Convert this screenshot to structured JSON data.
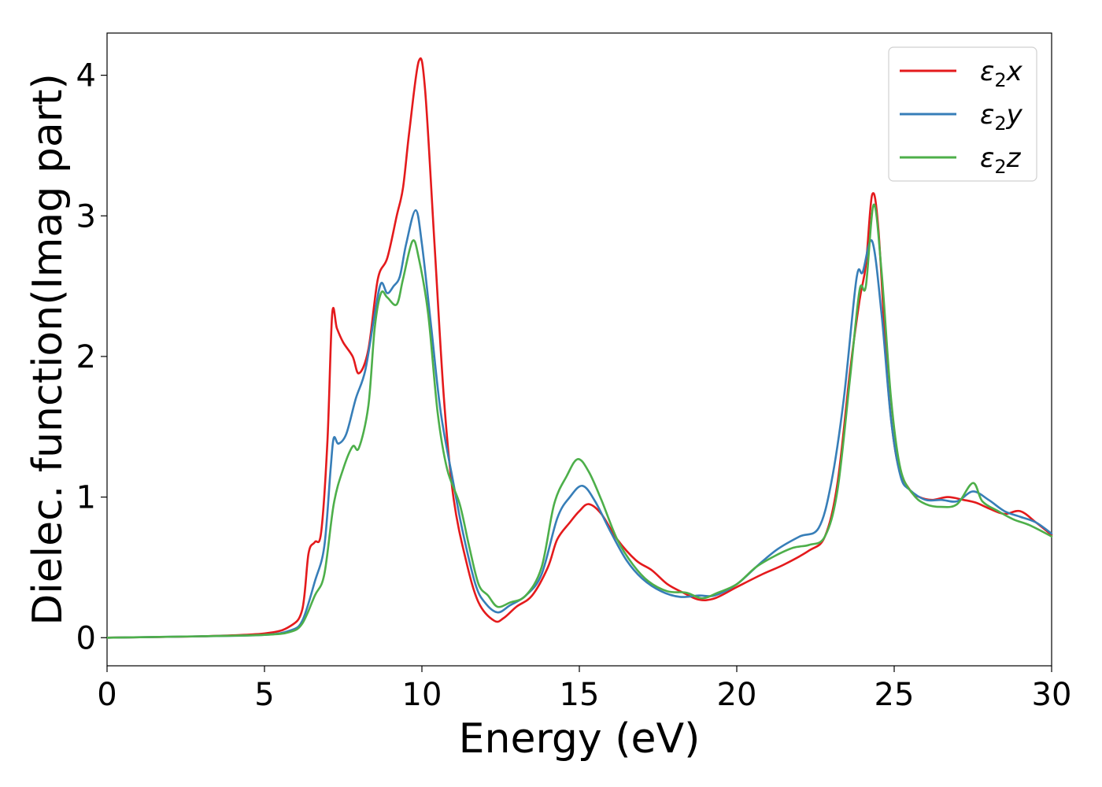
{
  "chart_data": {
    "type": "line",
    "title": "",
    "xlabel": "Energy (eV)",
    "ylabel": "Dielec. function(Imag part)",
    "xlim": [
      0,
      30
    ],
    "ylim": [
      -0.2,
      4.3
    ],
    "xticks": [
      0,
      5,
      10,
      15,
      20,
      25,
      30
    ],
    "yticks": [
      0,
      1,
      2,
      3,
      4
    ],
    "grid": false,
    "legend": {
      "placement": "top-right",
      "entries": [
        {
          "prefix": "ε",
          "sub": "2",
          "suffix": "x"
        },
        {
          "prefix": "ε",
          "sub": "2",
          "suffix": "y"
        },
        {
          "prefix": "ε",
          "sub": "2",
          "suffix": "z"
        }
      ]
    },
    "series": [
      {
        "name": "ε2x",
        "color": "#e41a1c",
        "points": [
          [
            0,
            0.0
          ],
          [
            3,
            0.01
          ],
          [
            5,
            0.03
          ],
          [
            5.8,
            0.08
          ],
          [
            6.2,
            0.2
          ],
          [
            6.4,
            0.6
          ],
          [
            6.6,
            0.68
          ],
          [
            6.8,
            0.75
          ],
          [
            7.0,
            1.4
          ],
          [
            7.15,
            2.3
          ],
          [
            7.3,
            2.2
          ],
          [
            7.5,
            2.1
          ],
          [
            7.8,
            2.0
          ],
          [
            8.0,
            1.88
          ],
          [
            8.3,
            2.05
          ],
          [
            8.6,
            2.55
          ],
          [
            8.9,
            2.7
          ],
          [
            9.2,
            3.0
          ],
          [
            9.4,
            3.2
          ],
          [
            9.6,
            3.6
          ],
          [
            9.9,
            4.1
          ],
          [
            10.1,
            3.9
          ],
          [
            10.4,
            2.8
          ],
          [
            10.7,
            1.7
          ],
          [
            11.0,
            1.0
          ],
          [
            11.4,
            0.55
          ],
          [
            11.8,
            0.25
          ],
          [
            12.3,
            0.12
          ],
          [
            12.6,
            0.14
          ],
          [
            13.0,
            0.22
          ],
          [
            13.5,
            0.3
          ],
          [
            14.0,
            0.5
          ],
          [
            14.3,
            0.7
          ],
          [
            14.7,
            0.82
          ],
          [
            15.0,
            0.9
          ],
          [
            15.3,
            0.95
          ],
          [
            15.7,
            0.88
          ],
          [
            16.2,
            0.7
          ],
          [
            16.8,
            0.55
          ],
          [
            17.3,
            0.48
          ],
          [
            17.8,
            0.38
          ],
          [
            18.3,
            0.32
          ],
          [
            18.8,
            0.27
          ],
          [
            19.3,
            0.28
          ],
          [
            20.0,
            0.36
          ],
          [
            20.8,
            0.45
          ],
          [
            21.5,
            0.52
          ],
          [
            22.3,
            0.62
          ],
          [
            22.8,
            0.72
          ],
          [
            23.2,
            1.1
          ],
          [
            23.6,
            1.9
          ],
          [
            23.9,
            2.4
          ],
          [
            24.1,
            2.65
          ],
          [
            24.3,
            3.15
          ],
          [
            24.5,
            2.9
          ],
          [
            24.8,
            1.8
          ],
          [
            25.1,
            1.25
          ],
          [
            25.5,
            1.05
          ],
          [
            25.8,
            1.0
          ],
          [
            26.2,
            0.98
          ],
          [
            26.7,
            1.0
          ],
          [
            27.2,
            0.98
          ],
          [
            27.6,
            0.96
          ],
          [
            28.0,
            0.92
          ],
          [
            28.5,
            0.88
          ],
          [
            29.0,
            0.9
          ],
          [
            29.5,
            0.82
          ],
          [
            30.0,
            0.73
          ]
        ]
      },
      {
        "name": "ε2y",
        "color": "#377eb8",
        "points": [
          [
            0,
            0.0
          ],
          [
            3,
            0.01
          ],
          [
            5,
            0.02
          ],
          [
            5.8,
            0.05
          ],
          [
            6.2,
            0.12
          ],
          [
            6.6,
            0.4
          ],
          [
            6.9,
            0.65
          ],
          [
            7.1,
            1.2
          ],
          [
            7.2,
            1.42
          ],
          [
            7.35,
            1.38
          ],
          [
            7.6,
            1.45
          ],
          [
            7.9,
            1.7
          ],
          [
            8.2,
            1.9
          ],
          [
            8.5,
            2.3
          ],
          [
            8.7,
            2.52
          ],
          [
            8.9,
            2.45
          ],
          [
            9.1,
            2.5
          ],
          [
            9.3,
            2.57
          ],
          [
            9.5,
            2.8
          ],
          [
            9.8,
            3.04
          ],
          [
            10.0,
            2.8
          ],
          [
            10.3,
            2.2
          ],
          [
            10.6,
            1.6
          ],
          [
            11.0,
            1.1
          ],
          [
            11.3,
            0.75
          ],
          [
            11.7,
            0.38
          ],
          [
            12.0,
            0.25
          ],
          [
            12.4,
            0.18
          ],
          [
            12.8,
            0.23
          ],
          [
            13.3,
            0.3
          ],
          [
            13.8,
            0.45
          ],
          [
            14.3,
            0.85
          ],
          [
            14.7,
            1.0
          ],
          [
            15.1,
            1.08
          ],
          [
            15.5,
            0.97
          ],
          [
            16.0,
            0.75
          ],
          [
            16.5,
            0.55
          ],
          [
            17.0,
            0.42
          ],
          [
            17.6,
            0.33
          ],
          [
            18.2,
            0.29
          ],
          [
            18.8,
            0.3
          ],
          [
            19.3,
            0.3
          ],
          [
            20.0,
            0.38
          ],
          [
            20.7,
            0.52
          ],
          [
            21.3,
            0.63
          ],
          [
            22.0,
            0.72
          ],
          [
            22.6,
            0.78
          ],
          [
            23.0,
            1.1
          ],
          [
            23.4,
            1.7
          ],
          [
            23.8,
            2.55
          ],
          [
            24.0,
            2.6
          ],
          [
            24.3,
            2.82
          ],
          [
            24.6,
            2.3
          ],
          [
            24.9,
            1.55
          ],
          [
            25.2,
            1.15
          ],
          [
            25.5,
            1.05
          ],
          [
            26.0,
            0.98
          ],
          [
            26.5,
            0.98
          ],
          [
            27.0,
            0.97
          ],
          [
            27.5,
            1.04
          ],
          [
            28.0,
            0.98
          ],
          [
            28.5,
            0.9
          ],
          [
            29.0,
            0.86
          ],
          [
            29.5,
            0.82
          ],
          [
            30.0,
            0.74
          ]
        ]
      },
      {
        "name": "ε2z",
        "color": "#4daf4a",
        "points": [
          [
            0,
            0.0
          ],
          [
            3,
            0.01
          ],
          [
            5,
            0.02
          ],
          [
            5.8,
            0.04
          ],
          [
            6.2,
            0.1
          ],
          [
            6.6,
            0.3
          ],
          [
            6.9,
            0.45
          ],
          [
            7.2,
            0.95
          ],
          [
            7.5,
            1.2
          ],
          [
            7.8,
            1.36
          ],
          [
            8.0,
            1.35
          ],
          [
            8.3,
            1.65
          ],
          [
            8.5,
            2.2
          ],
          [
            8.7,
            2.45
          ],
          [
            8.9,
            2.42
          ],
          [
            9.2,
            2.37
          ],
          [
            9.4,
            2.55
          ],
          [
            9.7,
            2.82
          ],
          [
            9.9,
            2.7
          ],
          [
            10.2,
            2.3
          ],
          [
            10.5,
            1.6
          ],
          [
            10.8,
            1.2
          ],
          [
            11.2,
            0.95
          ],
          [
            11.5,
            0.65
          ],
          [
            11.8,
            0.38
          ],
          [
            12.1,
            0.3
          ],
          [
            12.4,
            0.22
          ],
          [
            12.8,
            0.25
          ],
          [
            13.3,
            0.3
          ],
          [
            13.8,
            0.5
          ],
          [
            14.2,
            0.95
          ],
          [
            14.6,
            1.15
          ],
          [
            14.95,
            1.27
          ],
          [
            15.3,
            1.18
          ],
          [
            15.7,
            0.98
          ],
          [
            16.2,
            0.7
          ],
          [
            16.7,
            0.52
          ],
          [
            17.2,
            0.4
          ],
          [
            17.8,
            0.33
          ],
          [
            18.4,
            0.32
          ],
          [
            18.9,
            0.28
          ],
          [
            19.4,
            0.32
          ],
          [
            20.0,
            0.38
          ],
          [
            20.6,
            0.5
          ],
          [
            21.2,
            0.58
          ],
          [
            21.8,
            0.64
          ],
          [
            22.3,
            0.66
          ],
          [
            22.8,
            0.72
          ],
          [
            23.2,
            1.05
          ],
          [
            23.6,
            1.85
          ],
          [
            23.9,
            2.47
          ],
          [
            24.1,
            2.5
          ],
          [
            24.35,
            3.08
          ],
          [
            24.6,
            2.6
          ],
          [
            24.9,
            1.7
          ],
          [
            25.2,
            1.2
          ],
          [
            25.6,
            1.02
          ],
          [
            26.0,
            0.95
          ],
          [
            26.5,
            0.93
          ],
          [
            27.0,
            0.95
          ],
          [
            27.5,
            1.1
          ],
          [
            27.8,
            0.97
          ],
          [
            28.3,
            0.9
          ],
          [
            28.8,
            0.84
          ],
          [
            29.3,
            0.8
          ],
          [
            30.0,
            0.72
          ]
        ]
      }
    ]
  }
}
